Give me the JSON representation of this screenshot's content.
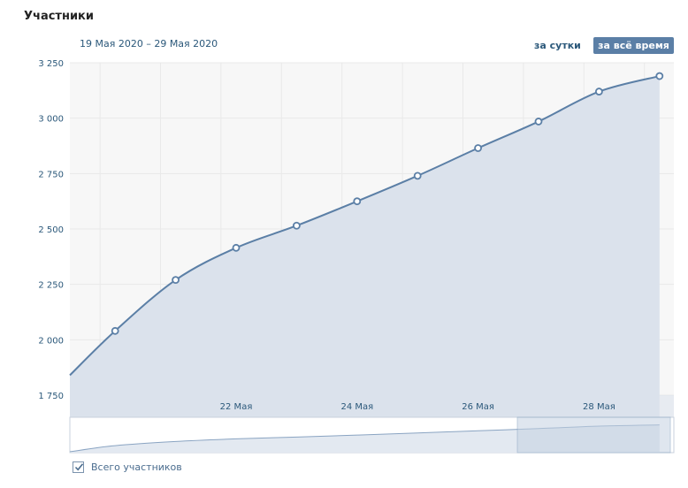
{
  "header": {
    "title": "Участники",
    "date_range": "19 Мая 2020 – 29 Мая 2020",
    "period_day_label": "за сутки",
    "period_all_label": "за всё время"
  },
  "legend": {
    "series_label": "Всего участников",
    "checked": true
  },
  "colors": {
    "line": "#5b7fa6",
    "area_fill": "#dbe2ec",
    "plot_bg": "#f7f7f7",
    "accent": "#5b7fa6"
  },
  "chart_data": {
    "type": "area",
    "title": "",
    "xlabel": "",
    "ylabel": "",
    "x": [
      "2020-05-20",
      "2020-05-21",
      "2020-05-22",
      "2020-05-23",
      "2020-05-24",
      "2020-05-25",
      "2020-05-26",
      "2020-05-27",
      "2020-05-28",
      "2020-05-29"
    ],
    "series": [
      {
        "values": [
          2040,
          2270,
          2415,
          2515,
          2625,
          2740,
          2865,
          2985,
          3120,
          3190
        ]
      }
    ],
    "line_start_value": 1840,
    "y_ticks": [
      1750,
      2000,
      2250,
      2500,
      2750,
      3000,
      3250
    ],
    "y_tick_labels": [
      "1 750",
      "2 000",
      "2 250",
      "2 500",
      "2 750",
      "3 000",
      "3 250"
    ],
    "x_ticks": [
      "2020-05-22",
      "2020-05-24",
      "2020-05-26",
      "2020-05-28"
    ],
    "x_tick_labels": [
      "22 Мая",
      "24 Мая",
      "26 Мая",
      "28 Мая"
    ],
    "ylim": [
      1750,
      3250
    ],
    "grid": true,
    "navigator": {
      "selected_range": [
        "2020-05-27",
        "2020-05-29"
      ]
    }
  }
}
